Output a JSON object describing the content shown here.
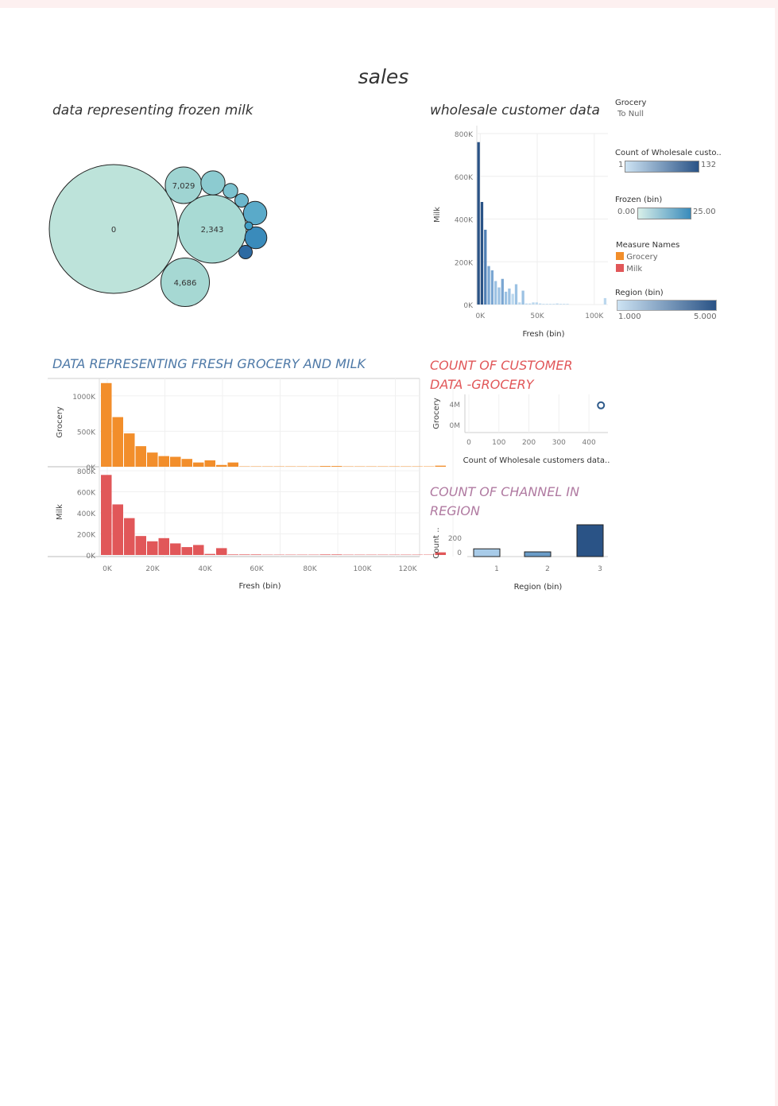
{
  "dashboard": {
    "title": "sales"
  },
  "colors": {
    "orange": "#f28e2b",
    "red": "#e15759",
    "teal": "#a8dad4",
    "navy": "#2e5a8a",
    "light_blue": "#a8cbe8"
  },
  "bubble": {
    "title": "data representing  frozen milk",
    "labels": [
      "0",
      "2,343",
      "7,029",
      "4,686"
    ]
  },
  "hist": {
    "title": "wholesale customer data",
    "ylabel": "Milk",
    "xlabel": "Fresh (bin)",
    "y_ticks": [
      "800K",
      "600K",
      "400K",
      "200K",
      "0K"
    ],
    "x_ticks": [
      "0K",
      "50K",
      "100K"
    ]
  },
  "legend": {
    "grocery_title": "Grocery",
    "grocery_value": "To Null",
    "count_title": "Count of Wholesale custo..",
    "count_min": "1",
    "count_max": "132",
    "frozen_title": "Frozen (bin)",
    "frozen_min": "0.00",
    "frozen_max": "25.00",
    "measure_title": "Measure Names",
    "measure_items": [
      "Grocery",
      "Milk"
    ],
    "region_title": "Region (bin)",
    "region_min": "1.000",
    "region_max": "5.000"
  },
  "fresh": {
    "title": "DATA REPRESENTING FRESH GROCERY AND MILK",
    "top_ylabel": "Grocery",
    "bottom_ylabel": "Milk",
    "top_ticks": [
      "1000K",
      "500K",
      "0K"
    ],
    "bottom_ticks": [
      "800K",
      "600K",
      "400K",
      "200K",
      "0K"
    ],
    "x_ticks": [
      "0K",
      "20K",
      "40K",
      "60K",
      "80K",
      "100K",
      "120K"
    ],
    "xlabel": "Fresh (bin)"
  },
  "scatter": {
    "title_line1": "COUNT OF CUSTOMER",
    "title_line2": "DATA -GROCERY",
    "ylabel": "Grocery",
    "y_ticks": [
      "4M",
      "0M"
    ],
    "x_ticks": [
      "0",
      "100",
      "200",
      "300",
      "400"
    ],
    "xlabel": "Count of Wholesale customers data.."
  },
  "channel": {
    "title_line1": "COUNT OF CHANNEL IN",
    "title_line2": "REGION",
    "ylabel": "Count ..",
    "y_ticks": [
      "200",
      "0"
    ],
    "x_ticks": [
      "1",
      "2",
      "3"
    ],
    "xlabel": "Region (bin)"
  },
  "chart_data": [
    {
      "type": "bubble",
      "title": "data representing  frozen milk",
      "bubbles": [
        {
          "label": "0",
          "size": 1.0,
          "color": "#bde3da"
        },
        {
          "label": "2,343",
          "size": 0.28,
          "color": "#a8dad4"
        },
        {
          "label": "7,029",
          "size": 0.081,
          "color": "#9fd4d2"
        },
        {
          "label": "4,686",
          "size": 0.142,
          "color": "#a6d8d3"
        },
        {
          "label": "",
          "size": 0.035,
          "color": "#8ccbd0"
        },
        {
          "label": "",
          "size": 0.013,
          "color": "#7cc2cf"
        },
        {
          "label": "",
          "size": 0.011,
          "color": "#6cb6cc"
        },
        {
          "label": "",
          "size": 0.033,
          "color": "#5aaac9"
        },
        {
          "label": "",
          "size": 0.029,
          "color": "#3a8bbb"
        },
        {
          "label": "",
          "size": 0.011,
          "color": "#2e6aa2"
        },
        {
          "label": "",
          "size": 0.0037,
          "color": "#3f9fc6"
        }
      ]
    },
    {
      "type": "bar",
      "title": "wholesale customer data",
      "xlabel": "Fresh (bin)",
      "ylabel": "Milk",
      "x": [
        0,
        3,
        6,
        9,
        12,
        15,
        18,
        21,
        24,
        27,
        30,
        33,
        36,
        39,
        42,
        45,
        48,
        51,
        54,
        57,
        60,
        63,
        66,
        69,
        72,
        75,
        78,
        81,
        84,
        87,
        90,
        93,
        96,
        99,
        102,
        105,
        108,
        111
      ],
      "values": [
        760,
        480,
        350,
        180,
        160,
        110,
        80,
        120,
        60,
        75,
        50,
        95,
        10,
        65,
        5,
        5,
        10,
        10,
        5,
        3,
        3,
        3,
        3,
        5,
        3,
        3,
        3,
        0,
        0,
        0,
        0,
        0,
        0,
        0,
        0,
        0,
        0,
        30
      ],
      "ylim": [
        0,
        800
      ],
      "xlim": [
        0,
        115
      ]
    },
    {
      "type": "bar",
      "title": "DATA REPRESENTING FRESH GROCERY AND MILK",
      "xlabel": "Fresh (bin)",
      "categories_k": [
        0,
        4,
        8,
        12,
        16,
        20,
        24,
        28,
        32,
        36,
        40,
        44,
        48,
        52,
        56,
        60,
        64,
        68,
        72,
        76,
        80,
        84,
        88,
        92,
        96,
        100,
        104,
        108,
        112,
        116
      ],
      "series": [
        {
          "name": "Grocery",
          "values": [
            1180,
            700,
            470,
            290,
            200,
            150,
            140,
            110,
            60,
            90,
            25,
            60,
            5,
            5,
            5,
            5,
            5,
            5,
            5,
            10,
            10,
            5,
            5,
            5,
            5,
            5,
            5,
            5,
            5,
            15
          ]
        },
        {
          "name": "Milk",
          "values": [
            760,
            480,
            350,
            180,
            130,
            160,
            110,
            75,
            95,
            10,
            65,
            5,
            5,
            5,
            3,
            3,
            3,
            3,
            3,
            5,
            5,
            3,
            3,
            3,
            3,
            3,
            3,
            3,
            3,
            25
          ]
        }
      ],
      "ylim_grocery": [
        0,
        1200
      ],
      "ylim_milk": [
        0,
        800
      ]
    },
    {
      "type": "scatter",
      "title": "COUNT OF CUSTOMER DATA -GROCERY",
      "xlabel": "Count of Wholesale customers data..",
      "ylabel": "Grocery",
      "points": [
        {
          "x": 440,
          "y": 3.5
        }
      ],
      "xlim": [
        0,
        450
      ],
      "ylim": [
        0,
        4.5
      ]
    },
    {
      "type": "bar",
      "title": "COUNT OF CHANNEL IN REGION",
      "xlabel": "Region (bin)",
      "ylabel": "Count ..",
      "categories": [
        "1",
        "2",
        "3"
      ],
      "values": [
        77,
        47,
        316
      ],
      "colors": [
        "#a8cbe8",
        "#6a9cc8",
        "#2a5386"
      ],
      "ylim": [
        0,
        316
      ]
    }
  ]
}
